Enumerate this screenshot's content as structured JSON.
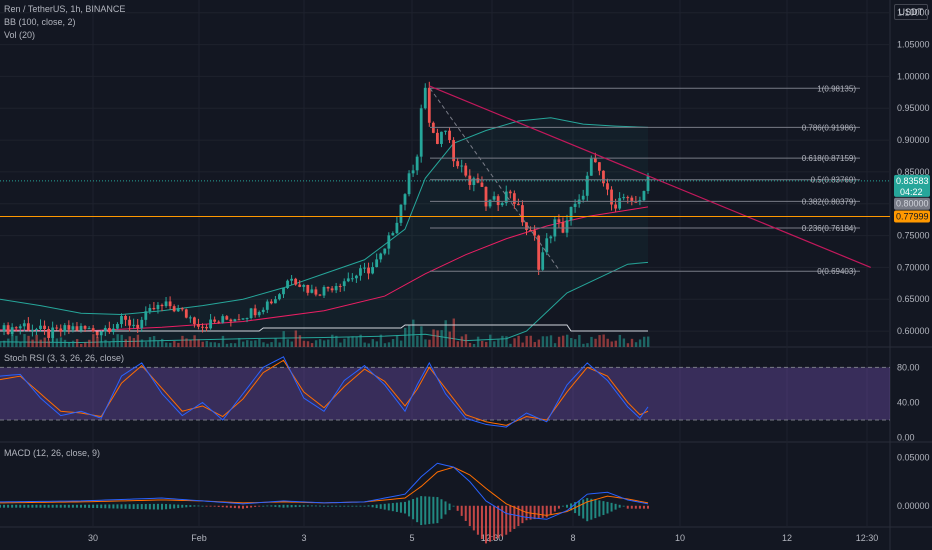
{
  "header": {
    "symbol_line": "Ren / TetherUS, 1h, BINANCE",
    "bb_line": "BB (100, close, 2)",
    "vol_line": "Vol (20)",
    "currency_badge": "USDT"
  },
  "colors": {
    "background": "#131722",
    "up": "#26a69a",
    "down": "#ef5350",
    "bb_band": "#26a69a",
    "bb_basis": "#e91e63",
    "fib": "#787b86",
    "trendline": "#c2185b",
    "hline_orange": "#ff9800",
    "rsi_band": "#7e57c2",
    "rsi_k": "#2962ff",
    "rsi_d": "#ff6d00",
    "macd_line": "#2962ff",
    "signal_line": "#ff6d00"
  },
  "price_tags": {
    "last": "0.83583",
    "countdown": "04:22",
    "hline": "0.77999",
    "hidden": "0.80000"
  },
  "chart_data": [
    {
      "type": "candlestick",
      "panel": "price",
      "y_ticks": [
        "1.10000",
        "1.05000",
        "1.00000",
        "0.95000",
        "0.90000",
        "0.85000",
        "0.80000",
        "0.75000",
        "0.70000",
        "0.65000",
        "0.60000"
      ],
      "ylim": [
        0.575,
        1.12
      ],
      "x_labels": [
        "30",
        "Feb",
        "3",
        "5",
        "12:30",
        "8",
        "10",
        "12",
        "12:30"
      ],
      "fib_levels": [
        {
          "label": "1(0.98135)",
          "value": 0.98135
        },
        {
          "label": "0.786(0.91986)",
          "value": 0.91986
        },
        {
          "label": "0.618(0.87159)",
          "value": 0.87159
        },
        {
          "label": "0.5(0.83769)",
          "value": 0.83769
        },
        {
          "label": "0.382(0.80379)",
          "value": 0.80379
        },
        {
          "label": "0.236(0.76184)",
          "value": 0.76184
        },
        {
          "label": "0(0.69403)",
          "value": 0.69403
        }
      ],
      "horizontal_line": 0.77999,
      "last_price": 0.83583,
      "price_path": [
        [
          0,
          0.6
        ],
        [
          6,
          0.61
        ],
        [
          12,
          0.595
        ],
        [
          18,
          0.605
        ],
        [
          24,
          0.6
        ],
        [
          30,
          0.615
        ],
        [
          34,
          0.61
        ],
        [
          38,
          0.635
        ],
        [
          42,
          0.64
        ],
        [
          46,
          0.625
        ],
        [
          50,
          0.61
        ],
        [
          54,
          0.615
        ],
        [
          58,
          0.622
        ],
        [
          62,
          0.63
        ],
        [
          68,
          0.652
        ],
        [
          72,
          0.688
        ],
        [
          74,
          0.675
        ],
        [
          77,
          0.662
        ],
        [
          80,
          0.665
        ],
        [
          84,
          0.678
        ],
        [
          88,
          0.688
        ],
        [
          92,
          0.7
        ],
        [
          95,
          0.725
        ],
        [
          98,
          0.778
        ],
        [
          101,
          0.84
        ],
        [
          103,
          0.88
        ],
        [
          104,
          0.95
        ],
        [
          105,
          0.975
        ],
        [
          106,
          0.93
        ],
        [
          108,
          0.89
        ],
        [
          110,
          0.92
        ],
        [
          112,
          0.875
        ],
        [
          114,
          0.86
        ],
        [
          116,
          0.83
        ],
        [
          118,
          0.835
        ],
        [
          120,
          0.8
        ],
        [
          123,
          0.805
        ],
        [
          126,
          0.82
        ],
        [
          128,
          0.79
        ],
        [
          130,
          0.76
        ],
        [
          132,
          0.745
        ],
        [
          133,
          0.705
        ],
        [
          135,
          0.74
        ],
        [
          137,
          0.77
        ],
        [
          139,
          0.76
        ],
        [
          141,
          0.79
        ],
        [
          143,
          0.8
        ],
        [
          145,
          0.84
        ],
        [
          146,
          0.865
        ],
        [
          148,
          0.85
        ],
        [
          150,
          0.815
        ],
        [
          152,
          0.8
        ],
        [
          154,
          0.81
        ],
        [
          156,
          0.795
        ],
        [
          158,
          0.81
        ],
        [
          160,
          0.836
        ]
      ],
      "bb_upper": [
        [
          0,
          0.65
        ],
        [
          10,
          0.64
        ],
        [
          20,
          0.628
        ],
        [
          30,
          0.626
        ],
        [
          40,
          0.632
        ],
        [
          50,
          0.64
        ],
        [
          60,
          0.65
        ],
        [
          70,
          0.668
        ],
        [
          80,
          0.69
        ],
        [
          90,
          0.712
        ],
        [
          100,
          0.76
        ],
        [
          105,
          0.84
        ],
        [
          112,
          0.895
        ],
        [
          120,
          0.915
        ],
        [
          128,
          0.93
        ],
        [
          136,
          0.935
        ],
        [
          144,
          0.925
        ],
        [
          152,
          0.922
        ],
        [
          160,
          0.92
        ]
      ],
      "bb_basis": [
        [
          0,
          0.602
        ],
        [
          20,
          0.6
        ],
        [
          40,
          0.606
        ],
        [
          60,
          0.615
        ],
        [
          80,
          0.632
        ],
        [
          95,
          0.655
        ],
        [
          105,
          0.69
        ],
        [
          115,
          0.72
        ],
        [
          125,
          0.745
        ],
        [
          135,
          0.765
        ],
        [
          145,
          0.78
        ],
        [
          155,
          0.79
        ],
        [
          160,
          0.795
        ]
      ],
      "bb_lower": [
        [
          0,
          0.583
        ],
        [
          20,
          0.582
        ],
        [
          40,
          0.585
        ],
        [
          60,
          0.588
        ],
        [
          80,
          0.59
        ],
        [
          95,
          0.592
        ],
        [
          105,
          0.595
        ],
        [
          115,
          0.585
        ],
        [
          125,
          0.588
        ],
        [
          130,
          0.6
        ],
        [
          135,
          0.63
        ],
        [
          140,
          0.66
        ],
        [
          150,
          0.69
        ],
        [
          155,
          0.705
        ],
        [
          160,
          0.708
        ]
      ],
      "trendline": [
        [
          106,
          0.985
        ],
        [
          215,
          0.7
        ]
      ]
    },
    {
      "type": "line",
      "panel": "stoch_rsi",
      "title": "Stoch RSI (3, 3, 26, 26, close)",
      "y_ticks": [
        "80.00",
        "40.00",
        "0.00"
      ],
      "ylim": [
        -5,
        102
      ],
      "band": [
        20,
        80
      ],
      "series": [
        {
          "values": [
            [
              0,
              70
            ],
            [
              5,
              72
            ],
            [
              10,
              45
            ],
            [
              15,
              25
            ],
            [
              20,
              30
            ],
            [
              25,
              22
            ],
            [
              30,
              70
            ],
            [
              35,
              85
            ],
            [
              40,
              50
            ],
            [
              45,
              25
            ],
            [
              50,
              40
            ],
            [
              55,
              20
            ],
            [
              60,
              50
            ],
            [
              65,
              80
            ],
            [
              70,
              92
            ],
            [
              75,
              45
            ],
            [
              80,
              30
            ],
            [
              85,
              65
            ],
            [
              90,
              82
            ],
            [
              95,
              60
            ],
            [
              100,
              30
            ],
            [
              103,
              60
            ],
            [
              106,
              85
            ],
            [
              110,
              50
            ],
            [
              115,
              22
            ],
            [
              120,
              15
            ],
            [
              125,
              12
            ],
            [
              130,
              28
            ],
            [
              135,
              18
            ],
            [
              140,
              60
            ],
            [
              145,
              85
            ],
            [
              150,
              65
            ],
            [
              155,
              35
            ],
            [
              158,
              22
            ],
            [
              160,
              35
            ]
          ]
        },
        {
          "values": [
            [
              0,
              66
            ],
            [
              5,
              70
            ],
            [
              10,
              50
            ],
            [
              15,
              30
            ],
            [
              20,
              28
            ],
            [
              25,
              24
            ],
            [
              30,
              62
            ],
            [
              35,
              82
            ],
            [
              40,
              56
            ],
            [
              45,
              30
            ],
            [
              50,
              36
            ],
            [
              55,
              24
            ],
            [
              60,
              44
            ],
            [
              65,
              74
            ],
            [
              70,
              88
            ],
            [
              75,
              52
            ],
            [
              80,
              34
            ],
            [
              85,
              58
            ],
            [
              90,
              78
            ],
            [
              95,
              64
            ],
            [
              100,
              36
            ],
            [
              103,
              55
            ],
            [
              106,
              80
            ],
            [
              110,
              56
            ],
            [
              115,
              26
            ],
            [
              120,
              18
            ],
            [
              125,
              14
            ],
            [
              130,
              24
            ],
            [
              135,
              20
            ],
            [
              140,
              52
            ],
            [
              145,
              80
            ],
            [
              150,
              70
            ],
            [
              155,
              40
            ],
            [
              158,
              26
            ],
            [
              160,
              30
            ]
          ]
        }
      ]
    },
    {
      "type": "line",
      "panel": "macd",
      "title": "MACD (12, 26, close, 9)",
      "y_ticks": [
        "0.05000",
        "0.00000"
      ],
      "ylim": [
        -0.022,
        0.065
      ],
      "series": [
        {
          "values": [
            [
              0,
              0.004
            ],
            [
              20,
              0.005
            ],
            [
              40,
              0.008
            ],
            [
              50,
              0.005
            ],
            [
              60,
              0.002
            ],
            [
              70,
              0.005
            ],
            [
              80,
              0.003
            ],
            [
              90,
              0.004
            ],
            [
              100,
              0.012
            ],
            [
              104,
              0.03
            ],
            [
              108,
              0.044
            ],
            [
              112,
              0.04
            ],
            [
              116,
              0.025
            ],
            [
              120,
              0.005
            ],
            [
              125,
              -0.008
            ],
            [
              130,
              -0.012
            ],
            [
              135,
              -0.014
            ],
            [
              140,
              -0.005
            ],
            [
              145,
              0.012
            ],
            [
              150,
              0.014
            ],
            [
              155,
              0.006
            ],
            [
              160,
              0.002
            ]
          ]
        },
        {
          "values": [
            [
              0,
              0.003
            ],
            [
              20,
              0.004
            ],
            [
              40,
              0.006
            ],
            [
              50,
              0.005
            ],
            [
              60,
              0.003
            ],
            [
              70,
              0.004
            ],
            [
              80,
              0.003
            ],
            [
              90,
              0.004
            ],
            [
              100,
              0.008
            ],
            [
              104,
              0.02
            ],
            [
              108,
              0.035
            ],
            [
              112,
              0.04
            ],
            [
              116,
              0.032
            ],
            [
              120,
              0.018
            ],
            [
              125,
              0.002
            ],
            [
              130,
              -0.007
            ],
            [
              135,
              -0.01
            ],
            [
              140,
              -0.006
            ],
            [
              145,
              0.004
            ],
            [
              150,
              0.01
            ],
            [
              155,
              0.007
            ],
            [
              160,
              0.003
            ]
          ]
        }
      ]
    }
  ]
}
